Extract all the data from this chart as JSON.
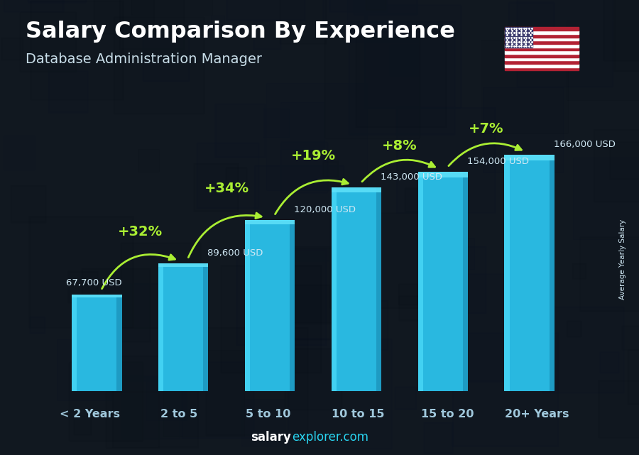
{
  "title": "Salary Comparison By Experience",
  "subtitle": "Database Administration Manager",
  "categories": [
    "< 2 Years",
    "2 to 5",
    "5 to 10",
    "10 to 15",
    "15 to 20",
    "20+ Years"
  ],
  "values": [
    67700,
    89600,
    120000,
    143000,
    154000,
    166000
  ],
  "value_labels": [
    "67,700 USD",
    "89,600 USD",
    "120,000 USD",
    "143,000 USD",
    "154,000 USD",
    "166,000 USD"
  ],
  "pct_changes": [
    "+32%",
    "+34%",
    "+19%",
    "+8%",
    "+7%"
  ],
  "bar_color_main": "#29b8e0",
  "bar_color_light": "#45d4f5",
  "bar_color_dark": "#1a90b8",
  "bar_color_top": "#5de0f8",
  "background_color": "#111820",
  "title_color": "#ffffff",
  "subtitle_color": "#c8dde8",
  "value_label_color": "#d0e8f4",
  "pct_color": "#aaee33",
  "xlabel_color": "#a0c8dc",
  "ylabel_text": "Average Yearly Salary",
  "footer_salary_color": "#ffffff",
  "footer_explorer_color": "#29d4f0",
  "ylim": [
    0,
    185000
  ],
  "bar_width": 0.58
}
